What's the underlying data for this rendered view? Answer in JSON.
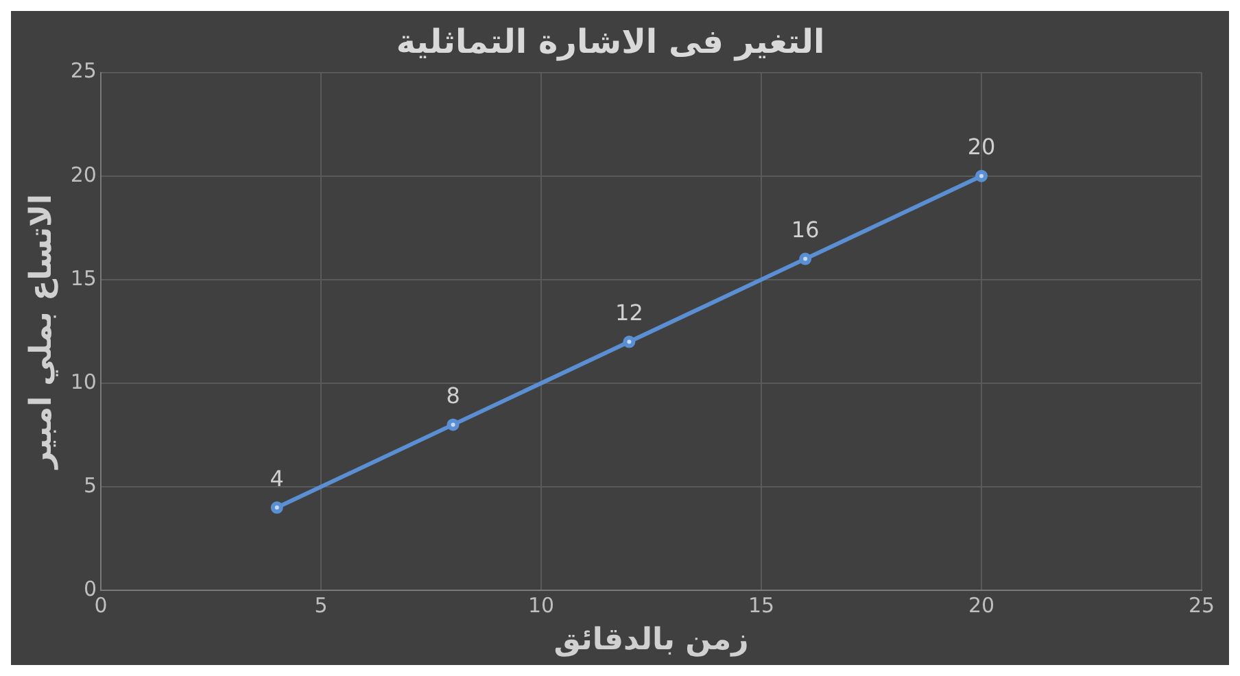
{
  "chart_data": {
    "type": "scatter",
    "title": "التغير فى الاشارة التماثلية",
    "xlabel": "زمن بالدقائق",
    "ylabel": "الاتساع بملي امبير",
    "x": [
      4,
      8,
      12,
      16,
      20
    ],
    "series": [
      {
        "color": "#5b8fd4",
        "values": [
          4,
          8,
          12,
          16,
          20
        ]
      }
    ],
    "xlim": [
      0,
      25
    ],
    "xticks": [
      0,
      5,
      10,
      15,
      20,
      25
    ],
    "ylim": [
      0,
      25
    ],
    "yticks": [
      0,
      5,
      10,
      15,
      20,
      25
    ],
    "grid": true,
    "legend": false,
    "marker": "circle",
    "line_style": "solid",
    "data_labels": true
  }
}
